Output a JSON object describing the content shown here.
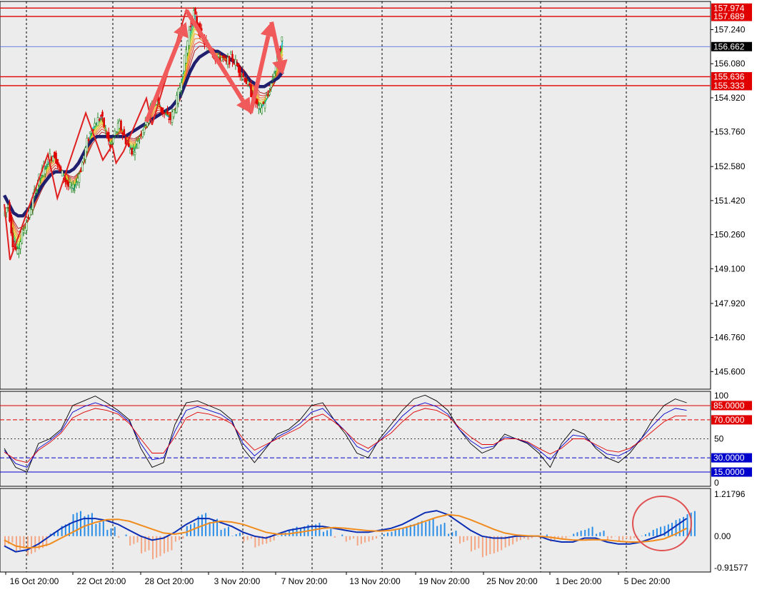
{
  "colors": {
    "background": "#ececec",
    "up_candle": "#2e8b2e",
    "down_candle": "#e00000",
    "ma_slow": "#1f1f6e",
    "zigzag": "#e02020",
    "arrow": "#f05a5a",
    "level_line": "#e00000",
    "current_price_line": "#3a5bd9",
    "stoch_main": "#000000",
    "stoch_blue": "#0000cc",
    "stoch_red": "#e00000",
    "hist_pos": "#2a8de8",
    "hist_neg": "#f4a582",
    "macd_line": "#0a2db4",
    "signal_line": "#f08c1e",
    "circle": "#e05050"
  },
  "chart_data": [
    {
      "type": "candlestick",
      "ylim": [
        145.0,
        158.2
      ],
      "y_ticks": [
        "157.240",
        "156.080",
        "154.920",
        "153.760",
        "152.580",
        "151.420",
        "150.260",
        "149.100",
        "147.920",
        "146.760",
        "145.600"
      ],
      "x_ticks": [
        "16 Oct 20:00",
        "22 Oct 20:00",
        "28 Oct 20:00",
        "3 Nov 20:00",
        "7 Nov 20:00",
        "13 Nov 20:00",
        "19 Nov 20:00",
        "25 Nov 20:00",
        "1 Dec 20:00",
        "5 Dec 20:00"
      ],
      "price_labels": [
        {
          "text": "157.974",
          "value": 157.974,
          "style": "level"
        },
        {
          "text": "157.689",
          "value": 157.689,
          "style": "level"
        },
        {
          "text": "156.662",
          "value": 156.662,
          "style": "current"
        },
        {
          "text": "155.636",
          "value": 155.636,
          "style": "level"
        },
        {
          "text": "155.333",
          "value": 155.333,
          "style": "level"
        }
      ],
      "path": [
        150.9,
        151.3,
        150.0,
        149.6,
        150.3,
        150.7,
        151.2,
        151.9,
        152.3,
        152.6,
        152.9,
        153.0,
        152.5,
        152.2,
        151.9,
        151.8,
        152.2,
        152.7,
        153.4,
        153.9,
        154.1,
        154.3,
        153.8,
        153.2,
        153.7,
        154.0,
        153.6,
        153.2,
        153.1,
        153.5,
        153.9,
        154.2,
        154.7,
        154.9,
        154.5,
        154.3,
        154.2,
        154.6,
        155.3,
        156.2,
        157.2,
        157.8,
        157.3,
        156.9,
        156.6,
        156.5,
        156.2,
        156.3,
        156.1,
        156.3,
        156.1,
        155.8,
        155.6,
        155.2,
        154.9,
        154.5,
        154.7,
        155.0,
        155.6,
        156.3,
        156.9
      ],
      "ma_slow": [
        151.6,
        151.3,
        151.0,
        150.9,
        150.9,
        151.1,
        151.3,
        151.6,
        151.9,
        152.1,
        152.3,
        152.4,
        152.4,
        152.4,
        152.4,
        152.5,
        152.7,
        153.0,
        153.3,
        153.5,
        153.6,
        153.6,
        153.6,
        153.6,
        153.6,
        153.6,
        153.6,
        153.7,
        153.8,
        153.9,
        154.0,
        154.1,
        154.2,
        154.3,
        154.4,
        154.5,
        154.6,
        154.8,
        155.0,
        155.4,
        155.8,
        156.1,
        156.3,
        156.4,
        156.5,
        156.5,
        156.5,
        156.4,
        156.3,
        156.2,
        156.1,
        155.9,
        155.7,
        155.5,
        155.4,
        155.3,
        155.3,
        155.4,
        155.5,
        155.6,
        155.8
      ],
      "zigzag": [
        [
          0,
          151.3
        ],
        [
          3,
          149.4
        ],
        [
          23,
          153.0
        ],
        [
          28,
          151.5
        ],
        [
          43,
          154.4
        ],
        [
          52,
          152.8
        ],
        [
          57,
          153.3
        ],
        [
          59,
          152.7
        ],
        [
          63,
          153.1
        ],
        [
          75,
          154.9
        ],
        [
          78,
          154.0
        ],
        [
          96,
          157.9
        ],
        [
          130,
          154.4
        ],
        [
          139,
          156.9
        ]
      ],
      "arrows": [
        [
          [
            75,
            154.1
          ],
          [
            96,
            157.5
          ]
        ],
        [
          [
            96,
            157.9
          ],
          [
            130,
            154.4
          ]
        ],
        [
          [
            130,
            154.4
          ],
          [
            141,
            157.5
          ]
        ],
        [
          [
            141,
            157.5
          ],
          [
            147,
            155.7
          ]
        ]
      ]
    },
    {
      "type": "line",
      "ylim": [
        0,
        100
      ],
      "y_ticks": [
        "100",
        "50",
        "0"
      ],
      "levels": [
        {
          "text": "85.0000",
          "value": 85,
          "color": "#e00000",
          "dash": "solid"
        },
        {
          "text": "70.0000",
          "value": 70,
          "color": "#e00000",
          "dash": "dash"
        },
        {
          "text": "30.0000",
          "value": 30,
          "color": "#0000cc",
          "dash": "dash"
        },
        {
          "text": "15.0000",
          "value": 15,
          "color": "#0000cc",
          "dash": "solid"
        }
      ],
      "series": [
        {
          "values": [
            40,
            20,
            15,
            45,
            50,
            60,
            85,
            90,
            95,
            88,
            80,
            70,
            40,
            20,
            25,
            65,
            88,
            90,
            85,
            80,
            70,
            40,
            25,
            40,
            55,
            60,
            70,
            85,
            88,
            70,
            55,
            35,
            30,
            50,
            65,
            80,
            92,
            96,
            90,
            80,
            60,
            45,
            35,
            40,
            55,
            50,
            45,
            35,
            20,
            45,
            60,
            55,
            40,
            30,
            25,
            35,
            50,
            70,
            85,
            92,
            88
          ]
        },
        {
          "values": [
            38,
            24,
            20,
            40,
            48,
            58,
            78,
            84,
            88,
            84,
            78,
            68,
            45,
            28,
            30,
            58,
            80,
            84,
            80,
            76,
            68,
            45,
            32,
            42,
            52,
            58,
            66,
            78,
            82,
            70,
            58,
            42,
            36,
            48,
            60,
            74,
            84,
            88,
            84,
            76,
            60,
            48,
            40,
            42,
            52,
            50,
            46,
            38,
            28,
            42,
            54,
            52,
            42,
            34,
            32,
            38,
            50,
            64,
            76,
            82,
            80
          ]
        },
        {
          "values": [
            36,
            28,
            25,
            38,
            46,
            56,
            72,
            78,
            82,
            80,
            76,
            66,
            50,
            35,
            35,
            52,
            72,
            78,
            76,
            72,
            66,
            50,
            38,
            44,
            50,
            56,
            62,
            72,
            76,
            68,
            58,
            46,
            40,
            48,
            56,
            68,
            78,
            82,
            80,
            74,
            62,
            52,
            44,
            44,
            50,
            50,
            47,
            40,
            34,
            40,
            50,
            50,
            44,
            38,
            36,
            40,
            48,
            58,
            68,
            74,
            74
          ]
        }
      ]
    },
    {
      "type": "bar",
      "ylim": [
        -0.91577,
        1.21796
      ],
      "y_ticks": [
        "1.21796",
        "0.00",
        "-0.91577"
      ],
      "histogram": [
        -0.2,
        -0.35,
        -0.45,
        -0.3,
        0.1,
        0.3,
        0.6,
        0.55,
        0.35,
        0.2,
        0.0,
        -0.2,
        -0.4,
        -0.55,
        -0.4,
        -0.1,
        0.3,
        0.55,
        0.4,
        0.2,
        0.05,
        -0.1,
        -0.25,
        -0.15,
        0.05,
        0.2,
        0.25,
        0.3,
        0.15,
        0.0,
        -0.1,
        -0.2,
        -0.1,
        0.05,
        0.15,
        0.25,
        0.35,
        0.4,
        0.3,
        0.1,
        -0.15,
        -0.35,
        -0.5,
        -0.4,
        -0.25,
        -0.1,
        -0.05,
        0.0,
        -0.1,
        -0.05,
        0.1,
        0.2,
        0.1,
        -0.05,
        -0.1,
        -0.05,
        0.05,
        0.2,
        0.3,
        0.45,
        0.6
      ],
      "macd": [
        -0.25,
        -0.4,
        -0.35,
        -0.2,
        0.0,
        0.2,
        0.35,
        0.45,
        0.45,
        0.4,
        0.3,
        0.15,
        0.0,
        -0.1,
        -0.05,
        0.1,
        0.3,
        0.45,
        0.45,
        0.35,
        0.25,
        0.1,
        0.0,
        -0.05,
        0.05,
        0.15,
        0.2,
        0.25,
        0.25,
        0.2,
        0.15,
        0.1,
        0.1,
        0.15,
        0.2,
        0.3,
        0.45,
        0.6,
        0.65,
        0.55,
        0.35,
        0.15,
        0.0,
        -0.05,
        -0.05,
        0.0,
        0.0,
        0.0,
        -0.1,
        -0.15,
        -0.15,
        -0.05,
        -0.05,
        -0.15,
        -0.2,
        -0.2,
        -0.15,
        -0.05,
        0.05,
        0.25,
        0.45
      ],
      "signal": [
        -0.1,
        -0.25,
        -0.3,
        -0.28,
        -0.2,
        -0.05,
        0.1,
        0.25,
        0.35,
        0.42,
        0.43,
        0.38,
        0.28,
        0.18,
        0.08,
        0.05,
        0.1,
        0.22,
        0.33,
        0.38,
        0.36,
        0.3,
        0.2,
        0.1,
        0.05,
        0.06,
        0.1,
        0.15,
        0.2,
        0.22,
        0.2,
        0.17,
        0.14,
        0.13,
        0.15,
        0.2,
        0.28,
        0.38,
        0.48,
        0.55,
        0.52,
        0.42,
        0.3,
        0.18,
        0.08,
        0.03,
        0.01,
        0.0,
        -0.03,
        -0.07,
        -0.1,
        -0.1,
        -0.09,
        -0.1,
        -0.13,
        -0.15,
        -0.15,
        -0.12,
        -0.07,
        0.05,
        0.2
      ]
    }
  ]
}
